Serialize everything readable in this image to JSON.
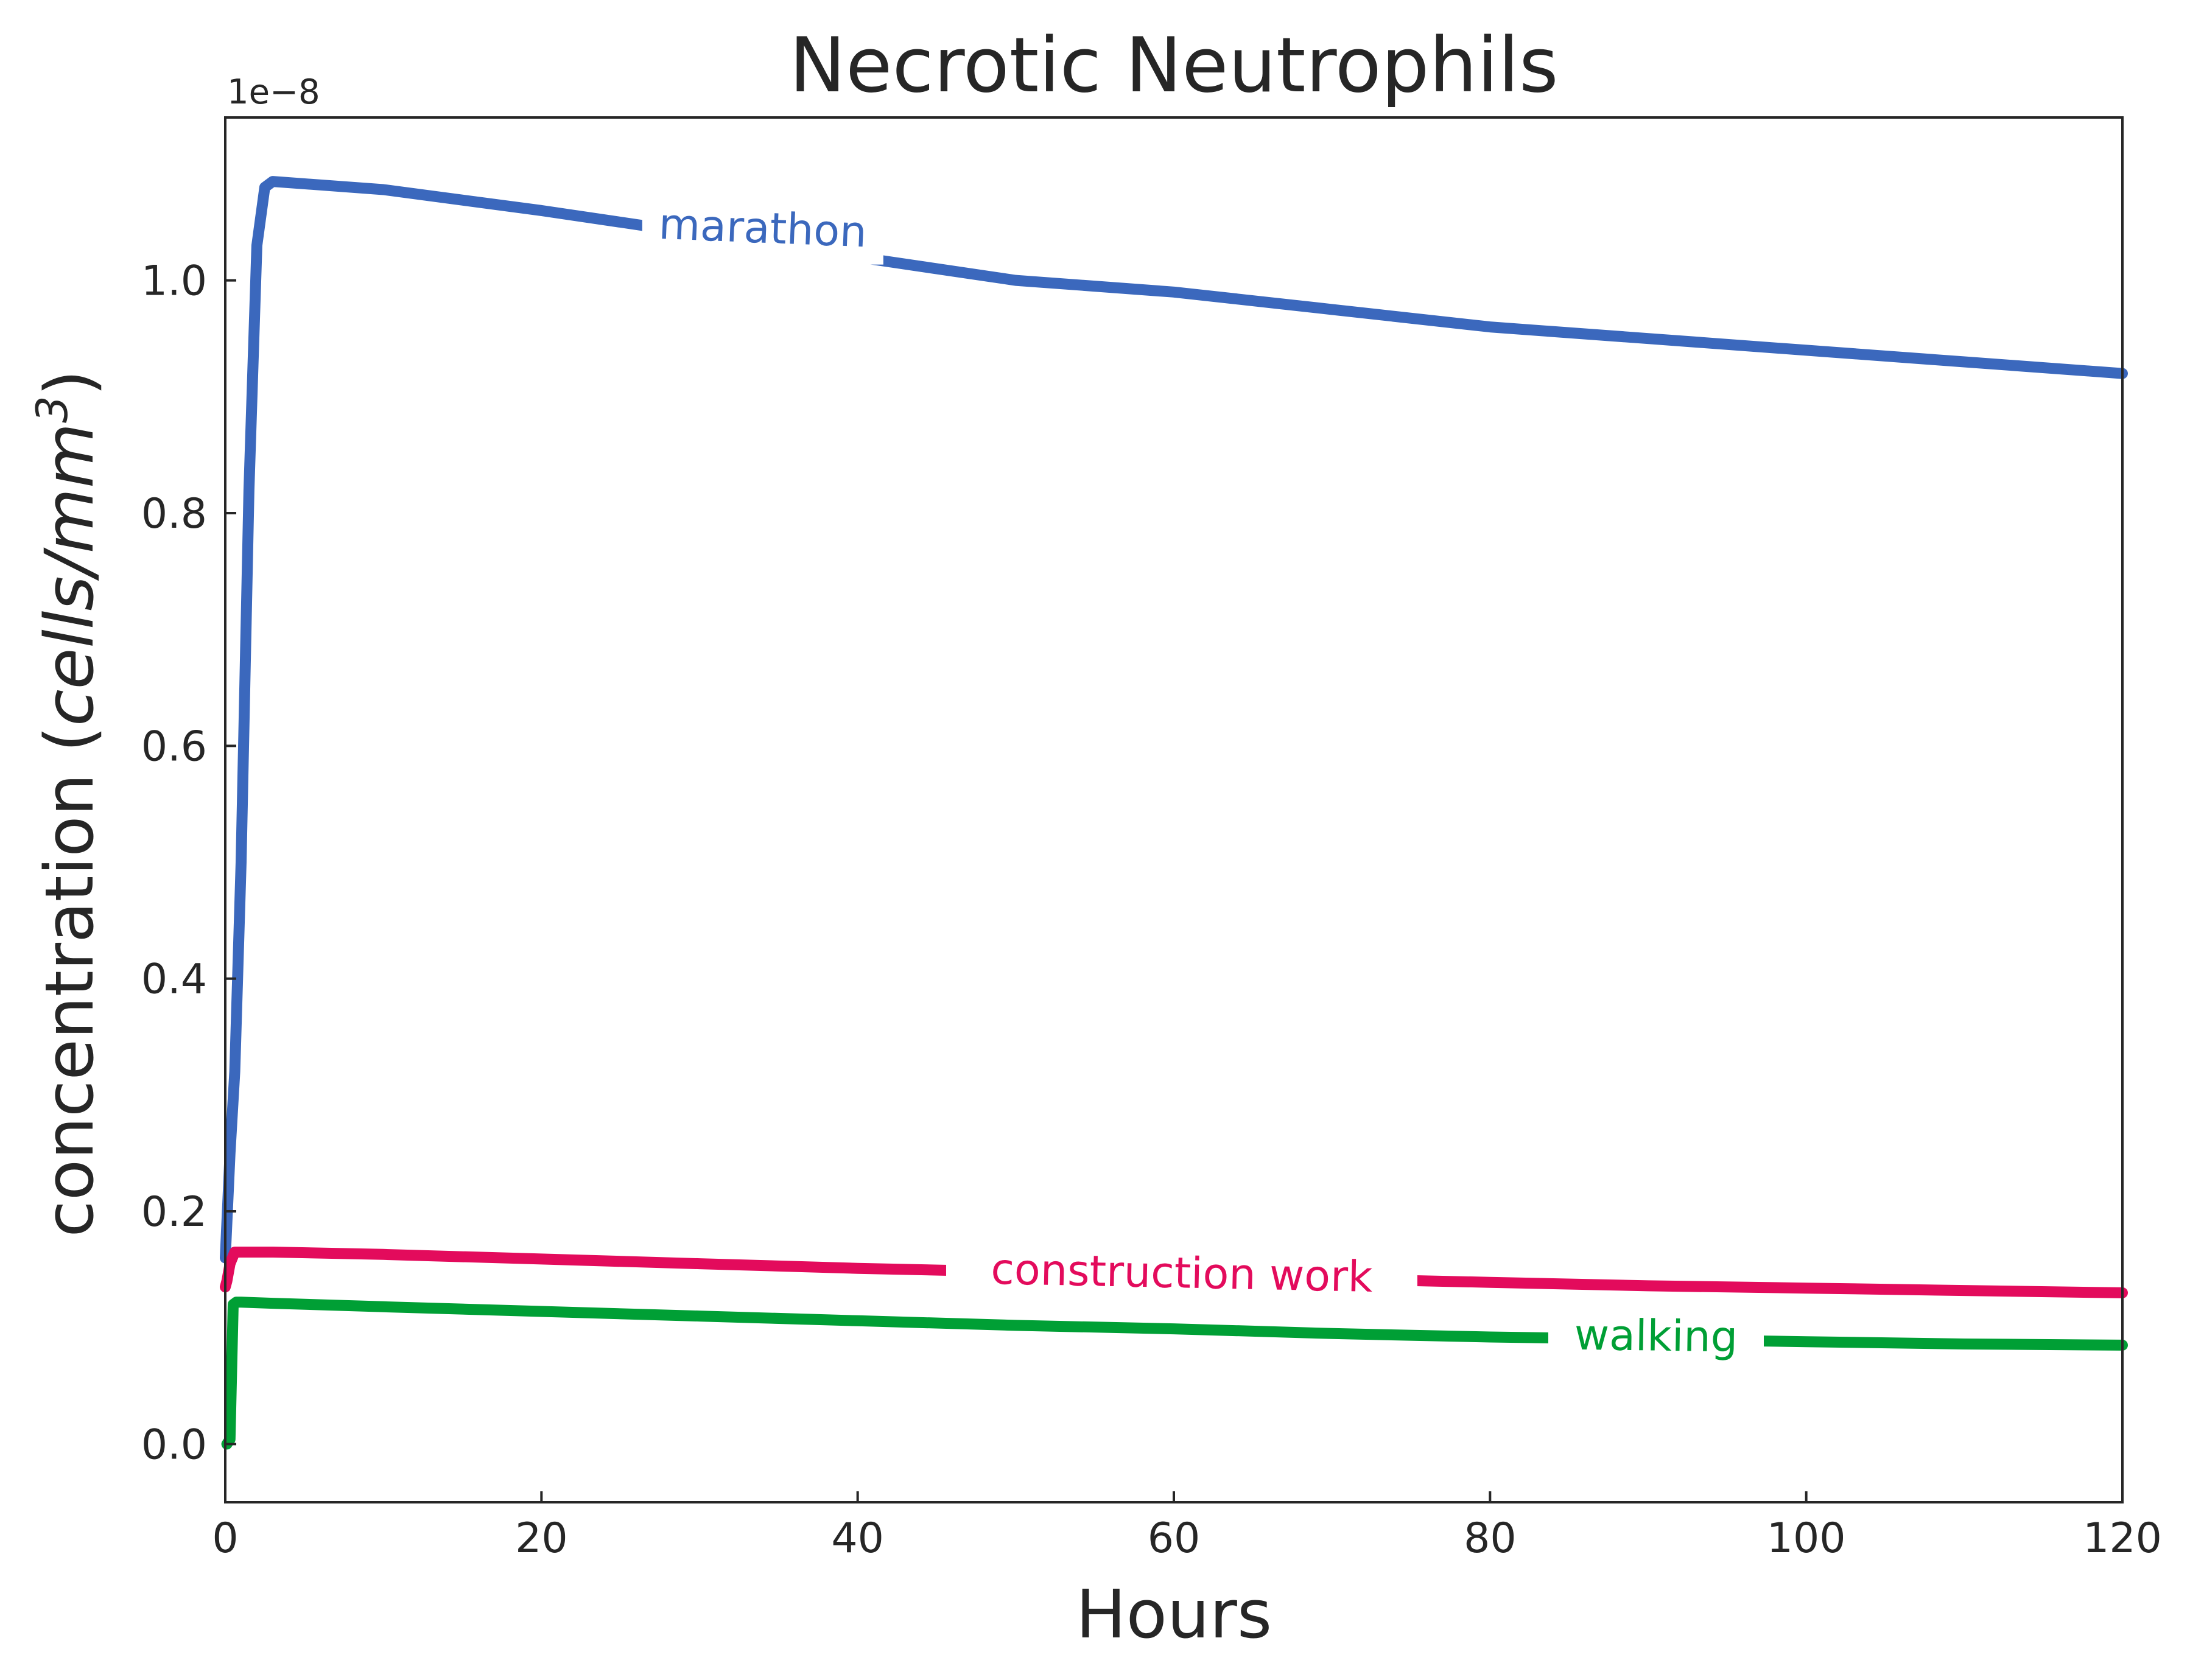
{
  "chart_data": {
    "type": "line",
    "title": "Necrotic Neutrophils",
    "xlabel": "Hours",
    "ylabel": {
      "prefix": "concentration (",
      "unit_italic": "cells/mm",
      "superscript": "3",
      "suffix": ")"
    },
    "y_offset_label": "1e−8",
    "xlim": [
      0,
      120
    ],
    "ylim": [
      -0.05,
      1.14
    ],
    "x_ticks": [
      0,
      20,
      40,
      60,
      80,
      100,
      120
    ],
    "x_tick_labels": [
      "0",
      "20",
      "40",
      "60",
      "80",
      "100",
      "120"
    ],
    "y_ticks": [
      0.0,
      0.2,
      0.4,
      0.6,
      0.8,
      1.0
    ],
    "y_tick_labels": [
      "0.0",
      "0.2",
      "0.4",
      "0.6",
      "0.8",
      "1.0"
    ],
    "grid": false,
    "legend": "none (inline labels on lines)",
    "series": [
      {
        "name": "marathon",
        "color": "#3b68bd",
        "x": [
          0,
          0.3,
          0.6,
          1.0,
          1.5,
          2.0,
          2.5,
          3.0,
          10,
          20,
          30,
          40,
          50,
          60,
          70,
          80,
          90,
          100,
          110,
          120
        ],
        "y": [
          0.16,
          0.25,
          0.32,
          0.5,
          0.82,
          1.03,
          1.08,
          1.085,
          1.078,
          1.06,
          1.04,
          1.02,
          1.0,
          0.99,
          0.975,
          0.96,
          0.95,
          0.94,
          0.93,
          0.92
        ],
        "label_x": 34,
        "label_y": 1.045,
        "label_angle": 2.3
      },
      {
        "name": "construction work",
        "color": "#e30b5c",
        "x": [
          0,
          0.1,
          0.3,
          0.6,
          1.0,
          3,
          10,
          20,
          30,
          40,
          50,
          60,
          70,
          80,
          90,
          100,
          110,
          120
        ],
        "y": [
          0.135,
          0.14,
          0.155,
          0.165,
          0.165,
          0.165,
          0.163,
          0.159,
          0.155,
          0.151,
          0.148,
          0.145,
          0.142,
          0.139,
          0.136,
          0.134,
          0.132,
          0.13
        ],
        "label_x": 60.5,
        "label_y": 0.147,
        "label_angle": 1.2
      },
      {
        "name": "walking",
        "color": "#009f35",
        "x": [
          0.1,
          0.3,
          0.5,
          0.7,
          1.0,
          3,
          10,
          20,
          30,
          40,
          50,
          60,
          70,
          80,
          90,
          100,
          110,
          120
        ],
        "y": [
          0.0,
          0.004,
          0.12,
          0.122,
          0.122,
          0.121,
          0.118,
          0.114,
          0.11,
          0.106,
          0.102,
          0.099,
          0.095,
          0.092,
          0.09,
          0.088,
          0.086,
          0.085
        ],
        "label_x": 90.5,
        "label_y": 0.093,
        "label_angle": 0.8
      }
    ]
  }
}
